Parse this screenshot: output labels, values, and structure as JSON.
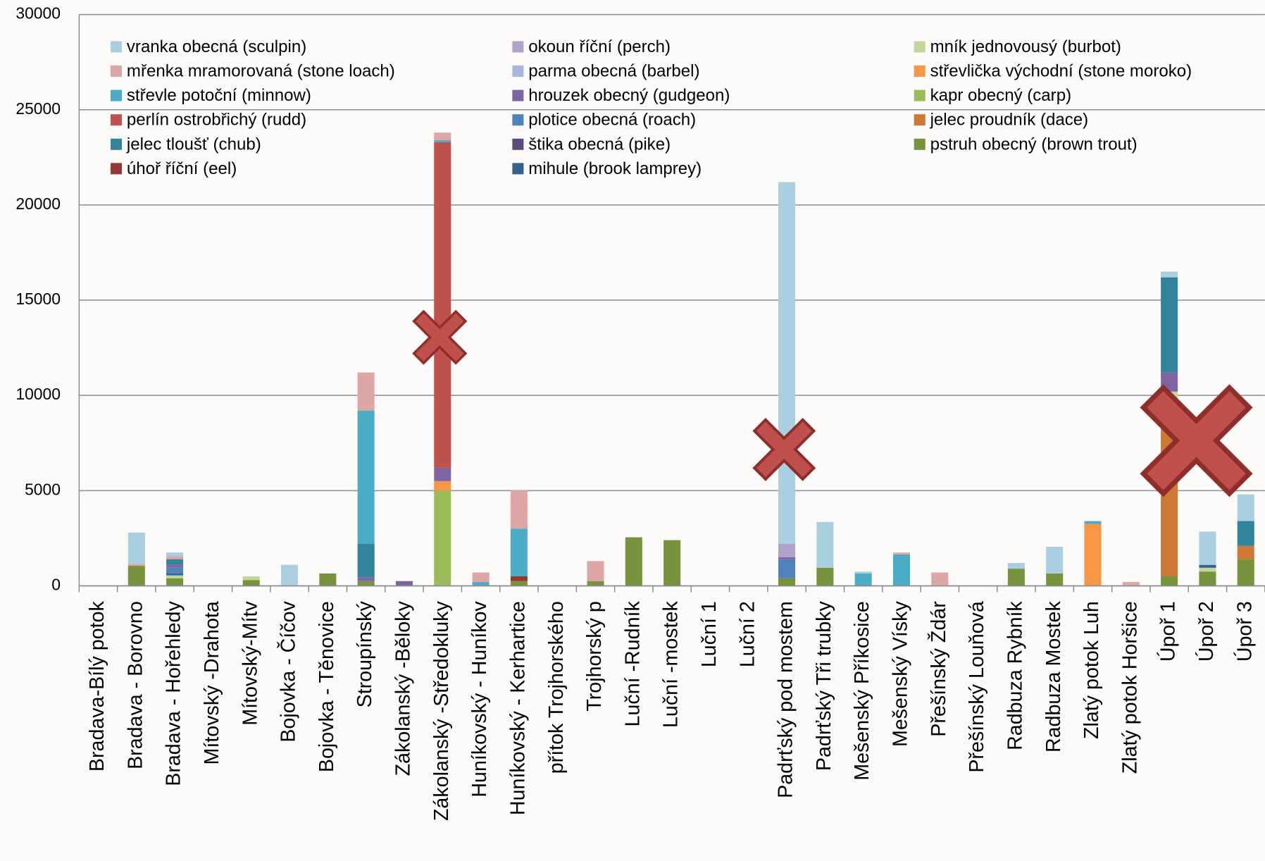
{
  "chart_data": {
    "type": "bar",
    "stacked": true,
    "categories": [
      "Bradava-Bílý potok",
      "Bradava - Borovno",
      "Bradava - Hořehledy",
      "Mítovský -Drahota",
      "Mítovský-Mítv",
      "Bojovka - Číčov",
      "Bojovka - Těnovice",
      "Stroupínský",
      "Zákolanský -Běloky",
      "Zákolanský -Středokluky",
      "Huníkovský - Huníkov",
      "Huníkovský - Kerhartice",
      "přítok Trojhorského",
      "Trojhorský p",
      "Luční -Rudník",
      "Luční -mostek",
      "Luční 1",
      "Luční 2",
      "Padrťský pod mostem",
      "Padrťský Tři trubky",
      "Mešenský Příkosice",
      "Mešenský Vísky",
      "Přešínský Ždár",
      "Přešínský Louňová",
      "Radbuza Rybník",
      "Radbuza Mostek",
      "Zlatý potok Luh",
      "Zlatý potok Horšice",
      "Úpoř 1",
      "Úpoř 2",
      "Úpoř 3"
    ],
    "series": [
      {
        "name": "vranka obecná (sculpin)",
        "color": "#a9cfe0",
        "values": [
          0,
          1650,
          200,
          0,
          0,
          1100,
          0,
          0,
          0,
          0,
          0,
          0,
          0,
          0,
          0,
          0,
          0,
          0,
          19000,
          2400,
          100,
          0,
          0,
          0,
          300,
          1400,
          0,
          0,
          300,
          1750,
          1400
        ]
      },
      {
        "name": "mřenka mramorovaná (stone loach)",
        "color": "#dfa6a6",
        "values": [
          0,
          100,
          150,
          0,
          0,
          0,
          0,
          2000,
          0,
          400,
          500,
          2000,
          0,
          1050,
          0,
          0,
          0,
          0,
          0,
          0,
          0,
          100,
          700,
          0,
          0,
          0,
          0,
          200,
          0,
          0,
          0
        ]
      },
      {
        "name": "střevle potoční (minnow)",
        "color": "#4bacc6",
        "values": [
          0,
          0,
          0,
          0,
          0,
          0,
          0,
          7000,
          0,
          100,
          200,
          2500,
          0,
          0,
          0,
          0,
          0,
          0,
          0,
          0,
          650,
          1650,
          0,
          0,
          0,
          0,
          150,
          0,
          0,
          0,
          0
        ]
      },
      {
        "name": "perlín ostrobřichý (rudd)",
        "color": "#c0504d",
        "values": [
          0,
          0,
          0,
          0,
          0,
          0,
          0,
          0,
          0,
          17100,
          0,
          0,
          0,
          0,
          0,
          0,
          0,
          0,
          0,
          0,
          0,
          0,
          0,
          0,
          0,
          0,
          0,
          0,
          0,
          0,
          0
        ]
      },
      {
        "name": "jelec tloušť (chub)",
        "color": "#31849b",
        "values": [
          0,
          0,
          300,
          0,
          0,
          0,
          0,
          1750,
          0,
          0,
          0,
          0,
          0,
          0,
          0,
          0,
          0,
          0,
          0,
          0,
          0,
          0,
          0,
          0,
          0,
          0,
          0,
          0,
          5000,
          0,
          1300
        ]
      },
      {
        "name": "úhoř říční (eel)",
        "color": "#953735",
        "values": [
          0,
          0,
          0,
          0,
          0,
          0,
          0,
          0,
          0,
          0,
          0,
          250,
          0,
          0,
          0,
          0,
          0,
          0,
          0,
          0,
          0,
          0,
          0,
          0,
          0,
          0,
          0,
          0,
          0,
          0,
          0
        ]
      },
      {
        "name": "okoun říční (perch)",
        "color": "#b3a2c7",
        "values": [
          0,
          0,
          0,
          0,
          0,
          0,
          0,
          0,
          0,
          0,
          0,
          0,
          0,
          0,
          0,
          0,
          0,
          0,
          700,
          0,
          0,
          0,
          0,
          0,
          0,
          0,
          0,
          0,
          0,
          0,
          0
        ]
      },
      {
        "name": "parma obecná (barbel)",
        "color": "#a6b9dc",
        "values": [
          0,
          0,
          0,
          0,
          0,
          0,
          0,
          0,
          0,
          0,
          0,
          0,
          0,
          0,
          0,
          0,
          0,
          0,
          0,
          0,
          0,
          0,
          0,
          0,
          0,
          0,
          0,
          0,
          0,
          0,
          0
        ]
      },
      {
        "name": "hrouzek obecný (gudgeon)",
        "color": "#8064a2",
        "values": [
          0,
          0,
          150,
          0,
          0,
          0,
          0,
          200,
          250,
          700,
          0,
          0,
          0,
          0,
          0,
          0,
          0,
          0,
          100,
          0,
          0,
          0,
          0,
          0,
          0,
          0,
          0,
          0,
          1000,
          0,
          0
        ]
      },
      {
        "name": "plotice obecná (roach)",
        "color": "#4f81bd",
        "values": [
          0,
          0,
          300,
          0,
          0,
          0,
          0,
          0,
          0,
          0,
          0,
          0,
          0,
          0,
          0,
          0,
          0,
          0,
          1000,
          0,
          0,
          0,
          0,
          0,
          0,
          0,
          0,
          0,
          0,
          0,
          0
        ]
      },
      {
        "name": "štika obecná (pike)",
        "color": "#604a7b",
        "values": [
          0,
          0,
          0,
          0,
          0,
          0,
          0,
          0,
          0,
          0,
          0,
          0,
          0,
          0,
          0,
          0,
          0,
          0,
          0,
          0,
          0,
          0,
          0,
          0,
          0,
          0,
          0,
          0,
          0,
          0,
          0
        ]
      },
      {
        "name": "mihule (brook lamprey)",
        "color": "#376092",
        "values": [
          0,
          0,
          100,
          0,
          0,
          0,
          0,
          0,
          0,
          0,
          0,
          0,
          0,
          0,
          0,
          0,
          0,
          0,
          0,
          0,
          0,
          0,
          0,
          0,
          0,
          0,
          0,
          0,
          0,
          150,
          0
        ]
      },
      {
        "name": "mník jednovousý (burbot)",
        "color": "#c4d79b",
        "values": [
          0,
          0,
          150,
          0,
          200,
          0,
          0,
          0,
          0,
          0,
          0,
          0,
          0,
          0,
          0,
          0,
          0,
          0,
          0,
          0,
          0,
          0,
          0,
          0,
          0,
          0,
          0,
          0,
          1300,
          200,
          0
        ]
      },
      {
        "name": "střevlička východní (stone moroko)",
        "color": "#f79646",
        "values": [
          0,
          0,
          0,
          0,
          0,
          0,
          0,
          0,
          0,
          500,
          0,
          0,
          0,
          0,
          0,
          0,
          0,
          0,
          0,
          0,
          0,
          0,
          0,
          0,
          0,
          0,
          3250,
          0,
          0,
          0,
          0
        ]
      },
      {
        "name": "kapr obecný (carp)",
        "color": "#9bbb59",
        "values": [
          0,
          0,
          0,
          0,
          0,
          0,
          0,
          0,
          0,
          5000,
          0,
          0,
          0,
          0,
          0,
          0,
          0,
          0,
          0,
          0,
          0,
          0,
          0,
          0,
          0,
          0,
          0,
          0,
          0,
          0,
          0
        ]
      },
      {
        "name": "jelec proudník (dace)",
        "color": "#cd7834",
        "values": [
          0,
          0,
          0,
          0,
          0,
          0,
          0,
          0,
          0,
          0,
          0,
          0,
          0,
          0,
          0,
          0,
          0,
          0,
          0,
          0,
          0,
          0,
          0,
          0,
          0,
          0,
          0,
          0,
          8400,
          0,
          700
        ]
      },
      {
        "name": "pstruh obecný (brown trout)",
        "color": "#77933c",
        "values": [
          0,
          1050,
          400,
          0,
          300,
          0,
          650,
          250,
          0,
          0,
          0,
          250,
          0,
          250,
          2550,
          2400,
          0,
          0,
          400,
          950,
          0,
          0,
          0,
          0,
          900,
          650,
          0,
          0,
          500,
          750,
          1400
        ]
      }
    ],
    "ylim": [
      0,
      30000
    ],
    "yticks": [
      0,
      5000,
      10000,
      15000,
      20000,
      25000,
      30000
    ],
    "grid": true
  }
}
